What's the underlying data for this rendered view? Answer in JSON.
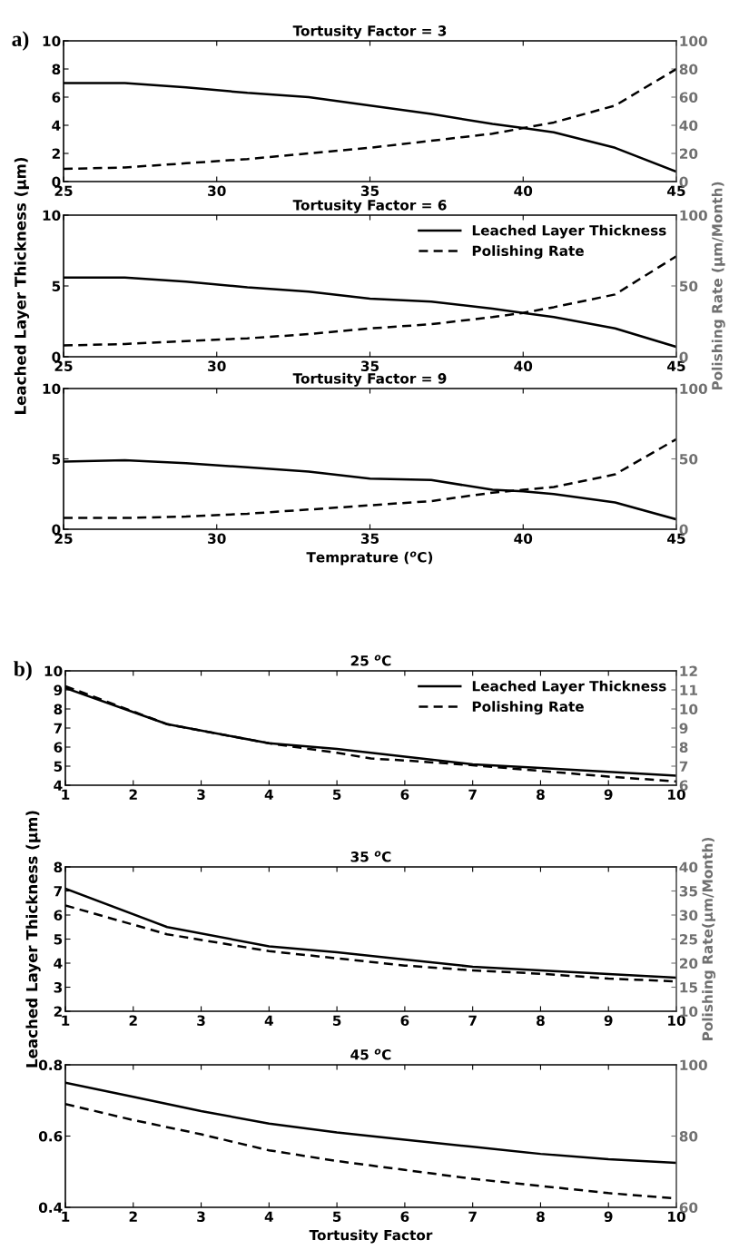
{
  "chart_data": [
    {
      "type": "line",
      "title": "Tortusity Factor = 3",
      "annotations": [
        "a)"
      ],
      "xlim": [
        25,
        45
      ],
      "xticks": [
        25,
        30,
        35,
        40,
        45
      ],
      "ylim": [
        0,
        10
      ],
      "yticks": [
        0,
        2,
        4,
        6,
        8,
        10
      ],
      "y2lim": [
        0,
        100
      ],
      "y2ticks": [
        0,
        20,
        40,
        60,
        80,
        100
      ],
      "grid": false,
      "legend": false,
      "marker": "none",
      "x": [
        25,
        27,
        29,
        31,
        33,
        35,
        37,
        39,
        40,
        41,
        43,
        45
      ],
      "series": [
        {
          "color": "#000000",
          "line_style": "solid",
          "values": [
            7.0,
            7.0,
            6.7,
            6.3,
            6.0,
            5.4,
            4.8,
            4.1,
            3.8,
            3.5,
            2.4,
            0.7
          ]
        },
        {
          "color": "#000000",
          "line_style": "dashed",
          "axis": "y2",
          "values": [
            9,
            10,
            13,
            16,
            20,
            24,
            29,
            34,
            38,
            42,
            54,
            80
          ]
        }
      ]
    },
    {
      "type": "line",
      "title": "Tortusity Factor = 6",
      "ylabel": "Leached Layer Thickness (μm)",
      "y2label": "Polishing Rate (μm/Month)",
      "xlim": [
        25,
        45
      ],
      "xticks": [
        25,
        30,
        35,
        40,
        45
      ],
      "ylim": [
        0,
        10
      ],
      "yticks": [
        0,
        5,
        10
      ],
      "y2lim": [
        0,
        100
      ],
      "y2ticks": [
        0,
        50,
        100
      ],
      "grid": false,
      "legend": "top right",
      "marker": "none",
      "x": [
        25,
        27,
        29,
        31,
        33,
        35,
        37,
        39,
        40,
        41,
        43,
        45
      ],
      "series": [
        {
          "name": "Leached Layer Thickness",
          "color": "#000000",
          "line_style": "solid",
          "values": [
            5.6,
            5.6,
            5.3,
            4.9,
            4.6,
            4.1,
            3.9,
            3.4,
            3.1,
            2.8,
            2.0,
            0.7
          ]
        },
        {
          "name": "Polishing Rate",
          "color": "#000000",
          "line_style": "dashed",
          "axis": "y2",
          "values": [
            8,
            9,
            11,
            13,
            16,
            20,
            23,
            28,
            31,
            35,
            44,
            71
          ]
        }
      ]
    },
    {
      "type": "line",
      "title": "Tortusity Factor = 9",
      "xlabel": "Temprature ($^{o}$C)",
      "xlim": [
        25,
        45
      ],
      "xticks": [
        25,
        30,
        35,
        40,
        45
      ],
      "ylim": [
        0,
        10
      ],
      "yticks": [
        0,
        5,
        10
      ],
      "y2lim": [
        0,
        100
      ],
      "y2ticks": [
        0,
        50,
        100
      ],
      "grid": false,
      "legend": false,
      "marker": "none",
      "x": [
        25,
        27,
        29,
        31,
        33,
        35,
        37,
        39,
        40,
        41,
        43,
        45
      ],
      "series": [
        {
          "color": "#000000",
          "line_style": "solid",
          "values": [
            4.8,
            4.9,
            4.7,
            4.4,
            4.1,
            3.6,
            3.5,
            2.8,
            2.7,
            2.5,
            1.9,
            0.7
          ]
        },
        {
          "color": "#000000",
          "line_style": "dashed",
          "axis": "y2",
          "values": [
            8,
            8,
            9,
            11,
            14,
            17,
            20,
            26,
            28,
            30,
            39,
            64
          ]
        }
      ]
    },
    {
      "type": "line",
      "title": "25 $^{o}$C",
      "annotations": [
        "b)"
      ],
      "xlim": [
        1,
        10
      ],
      "xticks": [
        1,
        2,
        3,
        4,
        5,
        6,
        7,
        8,
        9,
        10
      ],
      "ylim": [
        4,
        10
      ],
      "yticks": [
        4,
        5,
        6,
        7,
        8,
        9,
        10
      ],
      "y2lim": [
        6,
        12
      ],
      "y2ticks": [
        6,
        7,
        8,
        9,
        10,
        11,
        12
      ],
      "grid": false,
      "legend": "top right",
      "marker": "none",
      "x": [
        1,
        2.5,
        4,
        5,
        5.5,
        6,
        7,
        8,
        9,
        10
      ],
      "series": [
        {
          "name": "Leached Layer Thickness",
          "color": "#000000",
          "line_style": "solid",
          "values": [
            9.1,
            7.2,
            6.2,
            5.9,
            5.7,
            5.5,
            5.1,
            4.9,
            4.7,
            4.5
          ]
        },
        {
          "name": "Polishing Rate",
          "color": "#000000",
          "line_style": "dashed",
          "axis": "y2",
          "values": [
            11.2,
            9.2,
            8.2,
            7.7,
            7.4,
            7.3,
            7.05,
            6.75,
            6.45,
            6.2
          ]
        }
      ]
    },
    {
      "type": "line",
      "title": "35 $^{o}$C",
      "ylabel": "Leached Layer Thickness (μm)",
      "y2label": "Polishing Rate(μm/Month)",
      "xlim": [
        1,
        10
      ],
      "xticks": [
        1,
        2,
        3,
        4,
        5,
        6,
        7,
        8,
        9,
        10
      ],
      "ylim": [
        2,
        8
      ],
      "yticks": [
        2,
        3,
        4,
        5,
        6,
        7,
        8
      ],
      "y2lim": [
        10,
        40
      ],
      "y2ticks": [
        10,
        15,
        20,
        25,
        30,
        35,
        40
      ],
      "grid": false,
      "legend": false,
      "marker": "none",
      "x": [
        1,
        2.5,
        4,
        5,
        6,
        7,
        8,
        9,
        10
      ],
      "series": [
        {
          "color": "#000000",
          "line_style": "solid",
          "values": [
            7.1,
            5.5,
            4.7,
            4.45,
            4.15,
            3.85,
            3.7,
            3.55,
            3.4
          ]
        },
        {
          "color": "#000000",
          "line_style": "dashed",
          "axis": "y2",
          "values": [
            32,
            26,
            22.5,
            21,
            19.5,
            18.5,
            17.8,
            16.8,
            16.2
          ]
        }
      ]
    },
    {
      "type": "line",
      "title": "45 $^{o}$C",
      "xlabel": "Tortusity Factor",
      "xlim": [
        1,
        10
      ],
      "xticks": [
        1,
        2,
        3,
        4,
        5,
        6,
        7,
        8,
        9,
        10
      ],
      "ylim": [
        0.4,
        0.8
      ],
      "yticks": [
        0.4,
        0.6,
        0.8
      ],
      "y2lim": [
        60,
        100
      ],
      "y2ticks": [
        60,
        80,
        100
      ],
      "grid": false,
      "legend": false,
      "marker": "none",
      "x": [
        1,
        2,
        3,
        4,
        5,
        6,
        7,
        8,
        9,
        10
      ],
      "series": [
        {
          "color": "#000000",
          "line_style": "solid",
          "values": [
            0.75,
            0.71,
            0.67,
            0.635,
            0.61,
            0.59,
            0.57,
            0.55,
            0.535,
            0.525
          ]
        },
        {
          "color": "#000000",
          "line_style": "dashed",
          "axis": "y2",
          "values": [
            89,
            84.5,
            80.5,
            76,
            73,
            70.5,
            68,
            66,
            64,
            62.5
          ]
        }
      ]
    }
  ]
}
